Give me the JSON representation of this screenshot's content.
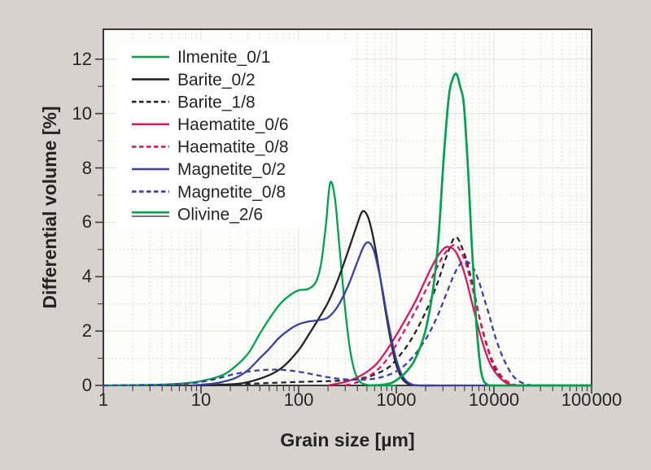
{
  "figure": {
    "background": "#d7d2cd",
    "plot_background": "#fdfdfc",
    "frame_color": "#3a3a3a",
    "grid_major_color": "#e7e1d9",
    "grid_minor_color": "#dad2c9",
    "text_color": "#242424",
    "legend_background": "#ffffff"
  },
  "chart_data": {
    "type": "line",
    "title": "",
    "xlabel": "Grain size [µm]",
    "ylabel": "Differential volume [%]",
    "x_scale": "log",
    "xlim": [
      1,
      100000
    ],
    "ylim": [
      0,
      13.1
    ],
    "x_tick_values": [
      1,
      10,
      100,
      1000,
      10000,
      100000
    ],
    "x_tick_labels": [
      "1",
      "10",
      "100",
      "1000",
      "10 000",
      "100 000"
    ],
    "y_tick_values": [
      0,
      2,
      4,
      6,
      8,
      10,
      12
    ],
    "y_tick_labels": [
      "0",
      "2",
      "4",
      "6",
      "8",
      "10",
      "12"
    ],
    "y_minor_ticks": [
      1,
      3,
      5,
      7,
      9,
      11
    ],
    "grid": "major solid + minor dotted",
    "legend_position": "upper-left",
    "series": [
      {
        "name": "Ilmenite_0/1",
        "color": "#00A14E",
        "line": "solid",
        "legend_swatch": "solid",
        "width": 2.3,
        "points": [
          [
            1,
            0
          ],
          [
            2,
            0.01
          ],
          [
            4,
            0.03
          ],
          [
            7,
            0.08
          ],
          [
            10,
            0.16
          ],
          [
            15,
            0.32
          ],
          [
            20,
            0.55
          ],
          [
            30,
            1.15
          ],
          [
            40,
            1.9
          ],
          [
            50,
            2.45
          ],
          [
            63,
            2.95
          ],
          [
            80,
            3.3
          ],
          [
            100,
            3.5
          ],
          [
            125,
            3.55
          ],
          [
            150,
            3.8
          ],
          [
            170,
            4.5
          ],
          [
            190,
            5.9
          ],
          [
            210,
            7.45
          ],
          [
            235,
            6.9
          ],
          [
            260,
            5.2
          ],
          [
            285,
            3.6
          ],
          [
            310,
            2.3
          ],
          [
            340,
            1.2
          ],
          [
            380,
            0.45
          ],
          [
            430,
            0.12
          ],
          [
            500,
            0.02
          ],
          [
            600,
            0
          ],
          [
            1000,
            0
          ]
        ]
      },
      {
        "name": "Barite_0/2",
        "color": "#242424",
        "line": "solid",
        "legend_swatch": "solid",
        "width": 2.3,
        "points": [
          [
            10,
            0
          ],
          [
            20,
            0.04
          ],
          [
            30,
            0.12
          ],
          [
            50,
            0.38
          ],
          [
            70,
            0.7
          ],
          [
            100,
            1.3
          ],
          [
            126,
            1.85
          ],
          [
            160,
            2.45
          ],
          [
            200,
            3.05
          ],
          [
            250,
            3.85
          ],
          [
            315,
            4.85
          ],
          [
            400,
            5.95
          ],
          [
            450,
            6.4
          ],
          [
            505,
            6.25
          ],
          [
            560,
            5.7
          ],
          [
            630,
            4.75
          ],
          [
            710,
            3.6
          ],
          [
            800,
            2.45
          ],
          [
            900,
            1.45
          ],
          [
            1000,
            0.75
          ],
          [
            1120,
            0.32
          ],
          [
            1260,
            0.1
          ],
          [
            1450,
            0.02
          ],
          [
            1700,
            0
          ],
          [
            2500,
            0
          ]
        ]
      },
      {
        "name": "Barite_1/8",
        "color": "#242424",
        "line": "dashed",
        "legend_swatch": "dashed",
        "width": 2.3,
        "points": [
          [
            8,
            0
          ],
          [
            15,
            0.03
          ],
          [
            30,
            0.06
          ],
          [
            60,
            0.1
          ],
          [
            100,
            0.13
          ],
          [
            160,
            0.15
          ],
          [
            250,
            0.17
          ],
          [
            400,
            0.24
          ],
          [
            560,
            0.36
          ],
          [
            800,
            0.62
          ],
          [
            1000,
            0.95
          ],
          [
            1400,
            1.65
          ],
          [
            2000,
            2.7
          ],
          [
            2600,
            3.7
          ],
          [
            3200,
            4.65
          ],
          [
            4000,
            5.45
          ],
          [
            4800,
            5.0
          ],
          [
            5600,
            4.2
          ],
          [
            6300,
            3.4
          ],
          [
            7200,
            2.4
          ],
          [
            8000,
            1.75
          ],
          [
            9000,
            1.15
          ],
          [
            10000,
            0.7
          ],
          [
            11500,
            0.35
          ],
          [
            13000,
            0.17
          ],
          [
            15000,
            0.05
          ],
          [
            17000,
            0
          ],
          [
            20000,
            0
          ]
        ]
      },
      {
        "name": "Haematite_0/6",
        "color": "#D8195E",
        "line": "solid",
        "legend_swatch": "solid",
        "width": 2.3,
        "points": [
          [
            200,
            0
          ],
          [
            250,
            0.07
          ],
          [
            315,
            0.15
          ],
          [
            400,
            0.3
          ],
          [
            500,
            0.5
          ],
          [
            630,
            0.8
          ],
          [
            800,
            1.3
          ],
          [
            1000,
            1.85
          ],
          [
            1250,
            2.45
          ],
          [
            1600,
            3.15
          ],
          [
            2000,
            3.9
          ],
          [
            2500,
            4.6
          ],
          [
            3000,
            5.0
          ],
          [
            3400,
            5.1
          ],
          [
            4000,
            4.95
          ],
          [
            4600,
            4.5
          ],
          [
            5200,
            3.9
          ],
          [
            6000,
            3.0
          ],
          [
            7000,
            2.05
          ],
          [
            8000,
            1.35
          ],
          [
            9000,
            0.85
          ],
          [
            10000,
            0.55
          ],
          [
            11500,
            0.28
          ],
          [
            13000,
            0.12
          ],
          [
            14500,
            0.04
          ],
          [
            16000,
            0
          ],
          [
            20000,
            0
          ]
        ]
      },
      {
        "name": "Haematite_0/8",
        "color": "#D8195E",
        "line": "dashed",
        "legend_swatch": "dashed",
        "width": 2.3,
        "points": [
          [
            300,
            0
          ],
          [
            400,
            0.12
          ],
          [
            500,
            0.3
          ],
          [
            630,
            0.55
          ],
          [
            800,
            0.95
          ],
          [
            1000,
            1.5
          ],
          [
            1250,
            2.1
          ],
          [
            1600,
            2.8
          ],
          [
            2000,
            3.5
          ],
          [
            2500,
            4.2
          ],
          [
            3000,
            4.75
          ],
          [
            3600,
            5.1
          ],
          [
            4100,
            5.15
          ],
          [
            4700,
            4.85
          ],
          [
            5300,
            4.35
          ],
          [
            6000,
            3.6
          ],
          [
            7000,
            2.6
          ],
          [
            8000,
            1.8
          ],
          [
            9000,
            1.2
          ],
          [
            10000,
            0.8
          ],
          [
            11500,
            0.42
          ],
          [
            13000,
            0.2
          ],
          [
            15000,
            0.07
          ],
          [
            17500,
            0
          ],
          [
            21000,
            0
          ]
        ]
      },
      {
        "name": "Magnetite_0/2",
        "color": "#3A41A0",
        "line": "solid",
        "legend_swatch": "solid",
        "width": 2.3,
        "points": [
          [
            8,
            0
          ],
          [
            12,
            0.05
          ],
          [
            16,
            0.12
          ],
          [
            22,
            0.26
          ],
          [
            30,
            0.55
          ],
          [
            40,
            1.0
          ],
          [
            50,
            1.35
          ],
          [
            63,
            1.75
          ],
          [
            80,
            2.05
          ],
          [
            100,
            2.25
          ],
          [
            126,
            2.35
          ],
          [
            160,
            2.4
          ],
          [
            200,
            2.5
          ],
          [
            250,
            2.9
          ],
          [
            320,
            3.65
          ],
          [
            400,
            4.55
          ],
          [
            470,
            5.15
          ],
          [
            530,
            5.25
          ],
          [
            590,
            4.95
          ],
          [
            650,
            4.35
          ],
          [
            720,
            3.55
          ],
          [
            800,
            2.6
          ],
          [
            900,
            1.65
          ],
          [
            1000,
            0.95
          ],
          [
            1120,
            0.45
          ],
          [
            1260,
            0.17
          ],
          [
            1450,
            0.04
          ],
          [
            1700,
            0
          ],
          [
            5000,
            0
          ],
          [
            100000,
            0
          ]
        ]
      },
      {
        "name": "Magnetite_0/8",
        "color": "#3A41A0",
        "line": "dashed",
        "legend_swatch": "dashed",
        "width": 2.3,
        "points": [
          [
            1,
            0
          ],
          [
            2,
            0.01
          ],
          [
            4,
            0.03
          ],
          [
            7,
            0.07
          ],
          [
            10,
            0.13
          ],
          [
            15,
            0.26
          ],
          [
            22,
            0.42
          ],
          [
            32,
            0.52
          ],
          [
            45,
            0.57
          ],
          [
            63,
            0.58
          ],
          [
            90,
            0.53
          ],
          [
            126,
            0.44
          ],
          [
            180,
            0.33
          ],
          [
            250,
            0.25
          ],
          [
            350,
            0.21
          ],
          [
            500,
            0.22
          ],
          [
            700,
            0.3
          ],
          [
            1000,
            0.52
          ],
          [
            1400,
            0.95
          ],
          [
            2000,
            1.7
          ],
          [
            2600,
            2.5
          ],
          [
            3200,
            3.3
          ],
          [
            4000,
            4.15
          ],
          [
            4800,
            4.55
          ],
          [
            5600,
            4.5
          ],
          [
            6300,
            4.25
          ],
          [
            7200,
            3.7
          ],
          [
            8000,
            3.15
          ],
          [
            9000,
            2.55
          ],
          [
            10000,
            1.95
          ],
          [
            11500,
            1.3
          ],
          [
            13000,
            0.85
          ],
          [
            15000,
            0.45
          ],
          [
            17000,
            0.22
          ],
          [
            20000,
            0.08
          ],
          [
            24000,
            0.01
          ],
          [
            28000,
            0
          ],
          [
            40000,
            0
          ]
        ]
      },
      {
        "name": "Olivine_2/6",
        "color": "#00A14E",
        "line": "solid",
        "legend_swatch": "double",
        "width": 2.7,
        "points": [
          [
            500,
            0
          ],
          [
            700,
            0.02
          ],
          [
            900,
            0.1
          ],
          [
            1100,
            0.3
          ],
          [
            1300,
            0.55
          ],
          [
            1550,
            0.95
          ],
          [
            1950,
            1.9
          ],
          [
            2350,
            3.4
          ],
          [
            2700,
            5.4
          ],
          [
            3050,
            8.3
          ],
          [
            3450,
            10.6
          ],
          [
            3800,
            11.3
          ],
          [
            4150,
            11.45
          ],
          [
            4500,
            11.0
          ],
          [
            4900,
            10.4
          ],
          [
            5300,
            8.6
          ],
          [
            5600,
            7.0
          ],
          [
            5900,
            5.3
          ],
          [
            6200,
            4.0
          ],
          [
            6600,
            2.3
          ],
          [
            7000,
            1.2
          ],
          [
            7400,
            0.5
          ],
          [
            7900,
            0.15
          ],
          [
            8600,
            0.03
          ],
          [
            9500,
            0
          ],
          [
            20000,
            0
          ],
          [
            100000,
            0
          ]
        ]
      }
    ]
  }
}
